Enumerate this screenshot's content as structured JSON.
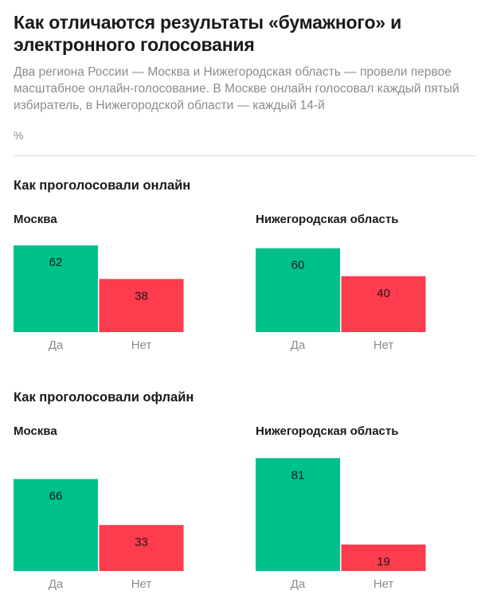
{
  "title": "Как отличаются результаты «бумажного» и электронного голосования",
  "subtitle": "Два региона России — Москва и Нижегородская область — провели первое масштабное онлайн-голосование. В Москве онлайн голосовал каждый пятый избиратель, в Нижегородской области — каждый 14-й",
  "unit": "%",
  "sections": [
    {
      "title": "Как проголосовали онлайн"
    },
    {
      "title": "Как проголосовали офлайн"
    }
  ],
  "colors": {
    "yes": "#00c08b",
    "no": "#ff3b4e"
  },
  "chart_data": [
    {
      "type": "bar",
      "title": "Москва",
      "categories": [
        "Да",
        "Нет"
      ],
      "values": [
        62,
        38
      ],
      "ylim": [
        0,
        100
      ]
    },
    {
      "type": "bar",
      "title": "Нижегородская область",
      "categories": [
        "Да",
        "Нет"
      ],
      "values": [
        60,
        40
      ],
      "ylim": [
        0,
        100
      ]
    },
    {
      "type": "bar",
      "title": "Москва",
      "categories": [
        "Да",
        "Нет"
      ],
      "values": [
        66,
        33
      ],
      "ylim": [
        0,
        100
      ]
    },
    {
      "type": "bar",
      "title": "Нижегородская область",
      "categories": [
        "Да",
        "Нет"
      ],
      "values": [
        81,
        19
      ],
      "ylim": [
        0,
        100
      ]
    }
  ]
}
